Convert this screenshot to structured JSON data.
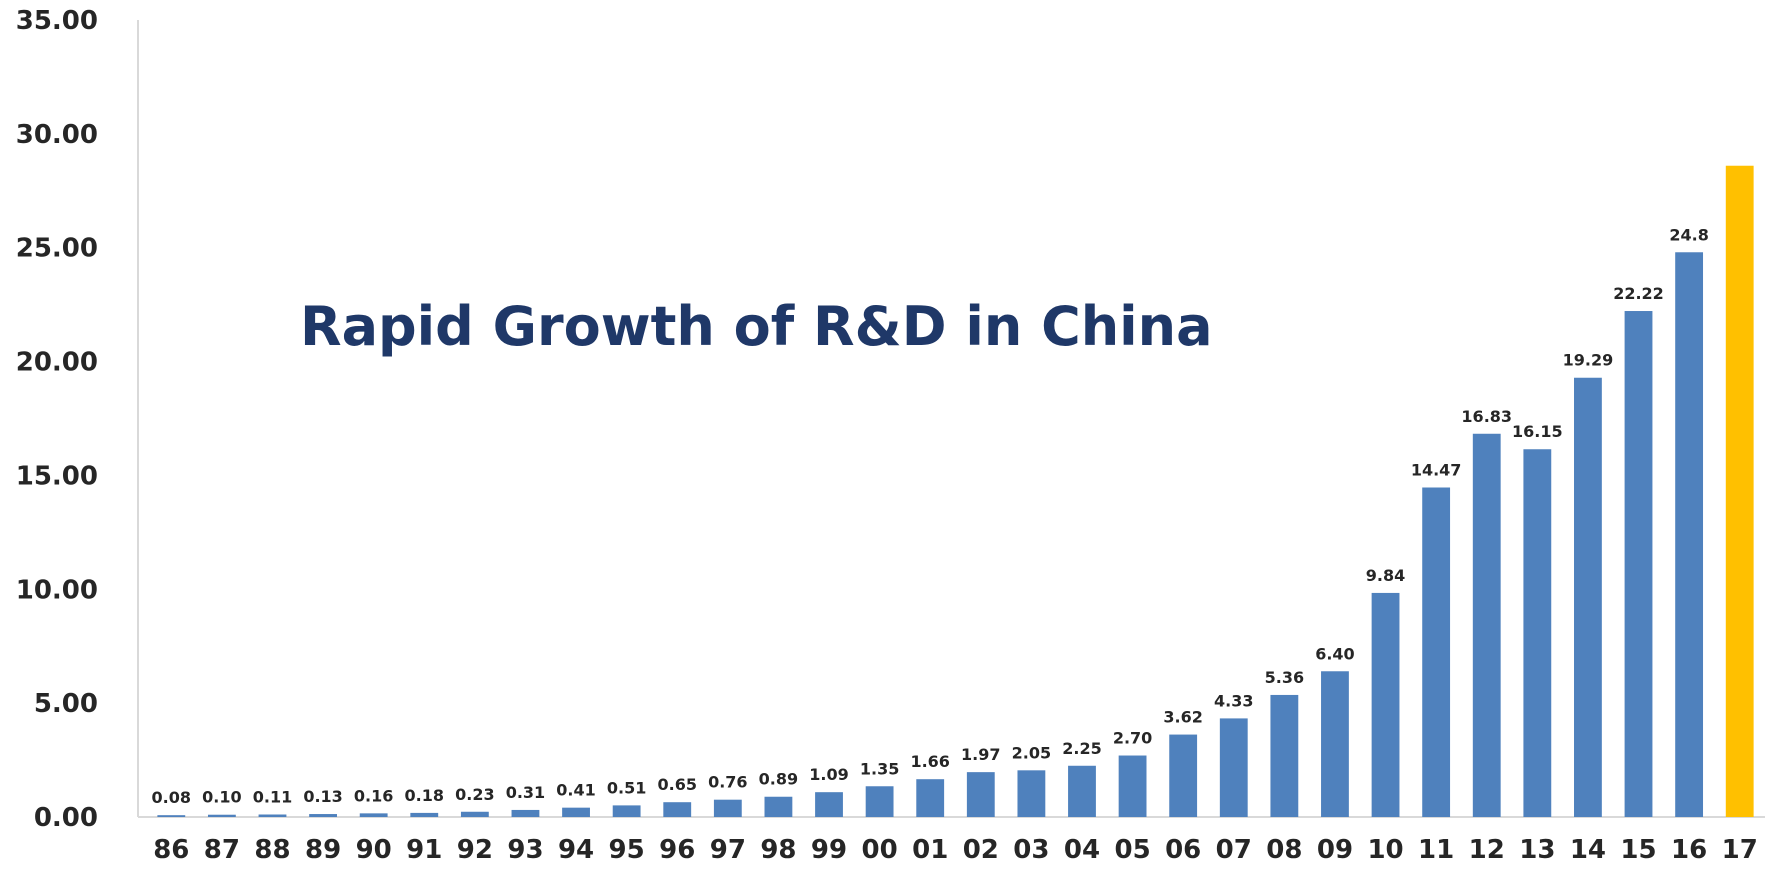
{
  "chart_data": {
    "type": "bar",
    "title": "Rapid Growth of R&D in China",
    "xlabel": "",
    "ylabel": "",
    "ylim": [
      0,
      35
    ],
    "yticks": [
      "0.00",
      "5.00",
      "10.00",
      "15.00",
      "20.00",
      "25.00",
      "30.00",
      "35.00"
    ],
    "grid": false,
    "categories": [
      "86",
      "87",
      "88",
      "89",
      "90",
      "91",
      "92",
      "93",
      "94",
      "95",
      "96",
      "97",
      "98",
      "99",
      "00",
      "01",
      "02",
      "03",
      "04",
      "05",
      "06",
      "07",
      "08",
      "09",
      "10",
      "11",
      "12",
      "13",
      "14",
      "15",
      "16",
      "17"
    ],
    "values": [
      0.08,
      0.1,
      0.11,
      0.13,
      0.16,
      0.18,
      0.23,
      0.31,
      0.41,
      0.51,
      0.65,
      0.76,
      0.89,
      1.09,
      1.35,
      1.66,
      1.97,
      2.05,
      2.25,
      2.7,
      3.62,
      4.33,
      5.36,
      6.4,
      9.84,
      14.47,
      16.83,
      16.15,
      19.29,
      22.22,
      24.8,
      28.6
    ],
    "data_labels": [
      "0.08",
      "0.10",
      "0.11",
      "0.13",
      "0.16",
      "0.18",
      "0.23",
      "0.31",
      "0.41",
      "0.51",
      "0.65",
      "0.76",
      "0.89",
      "1.09",
      "1.35",
      "1.66",
      "1.97",
      "2.05",
      "2.25",
      "2.70",
      "3.62",
      "4.33",
      "5.36",
      "6.40",
      "9.84",
      "14.47",
      "16.83",
      "16.15",
      "19.29",
      "22.22",
      "24.8",
      ""
    ],
    "highlight_index": 31
  },
  "colors": {
    "bar": "#4f81bd",
    "highlight": "#ffc000",
    "title": "#1f3868",
    "axis": "#d9d9d9",
    "text": "#262626"
  }
}
